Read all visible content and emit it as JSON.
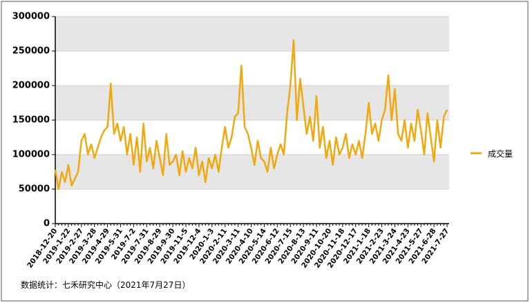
{
  "chart_data": {
    "type": "line",
    "note": "数据统计：七禾研究中心（2021年7月27日）",
    "categories": [
      "2018-12-20",
      null,
      null,
      null,
      "2019-1-22",
      null,
      null,
      null,
      "2019-2-27",
      null,
      null,
      null,
      "2019-3-28",
      null,
      null,
      null,
      "2019-4-29",
      null,
      null,
      null,
      "2019-5-31",
      null,
      null,
      null,
      "2019-7-2",
      null,
      null,
      null,
      "2019-7-31",
      null,
      null,
      null,
      "2019-8-29",
      null,
      null,
      null,
      "2019-9-30",
      null,
      null,
      null,
      "2019-11-5",
      null,
      null,
      null,
      "2019-12-4",
      null,
      null,
      null,
      "2020-1-3",
      null,
      null,
      null,
      "2020-2-11",
      null,
      null,
      null,
      "2020-3-11",
      null,
      null,
      null,
      "2020-4-10",
      null,
      null,
      null,
      "2020-5-14",
      null,
      null,
      null,
      "2020-6-12",
      null,
      null,
      null,
      "2020-7-15",
      null,
      null,
      null,
      "2020-8-13",
      null,
      null,
      null,
      "2020-9-11",
      null,
      null,
      null,
      "2020-10-20",
      null,
      null,
      null,
      "2020-11-18",
      null,
      null,
      null,
      "2020-12-17",
      null,
      null,
      null,
      "2021-1-18",
      null,
      null,
      null,
      "2021-2-23",
      null,
      null,
      null,
      "2021-3-24",
      null,
      null,
      null,
      "2021-4-23",
      null,
      null,
      null,
      "2021-5-27",
      null,
      null,
      null,
      "2021-6-28",
      null,
      null,
      null,
      "2021-7-27"
    ],
    "series": [
      {
        "name": "成交量",
        "color": "#f0a80f",
        "values": [
          78000,
          50000,
          75000,
          60000,
          85000,
          55000,
          65000,
          75000,
          120000,
          130000,
          100000,
          115000,
          95000,
          110000,
          125000,
          135000,
          140000,
          203000,
          130000,
          145000,
          120000,
          140000,
          100000,
          130000,
          85000,
          125000,
          75000,
          145000,
          90000,
          110000,
          80000,
          120000,
          95000,
          70000,
          130000,
          85000,
          90000,
          100000,
          70000,
          105000,
          75000,
          95000,
          80000,
          110000,
          70000,
          90000,
          60000,
          95000,
          80000,
          100000,
          75000,
          110000,
          140000,
          110000,
          125000,
          155000,
          160000,
          229000,
          140000,
          130000,
          110000,
          85000,
          120000,
          95000,
          90000,
          75000,
          110000,
          80000,
          100000,
          115000,
          100000,
          160000,
          200000,
          266000,
          150000,
          210000,
          170000,
          130000,
          155000,
          120000,
          185000,
          110000,
          140000,
          95000,
          120000,
          85000,
          125000,
          100000,
          110000,
          130000,
          95000,
          115000,
          100000,
          120000,
          95000,
          130000,
          175000,
          130000,
          145000,
          120000,
          150000,
          165000,
          215000,
          150000,
          195000,
          130000,
          120000,
          150000,
          110000,
          145000,
          120000,
          165000,
          135000,
          100000,
          160000,
          125000,
          90000,
          150000,
          110000,
          155000,
          165000
        ]
      }
    ],
    "ylim": [
      0,
      300000
    ],
    "yticks": [
      0,
      50000,
      100000,
      150000,
      200000,
      250000,
      300000
    ],
    "grid": true,
    "legend": "right"
  }
}
